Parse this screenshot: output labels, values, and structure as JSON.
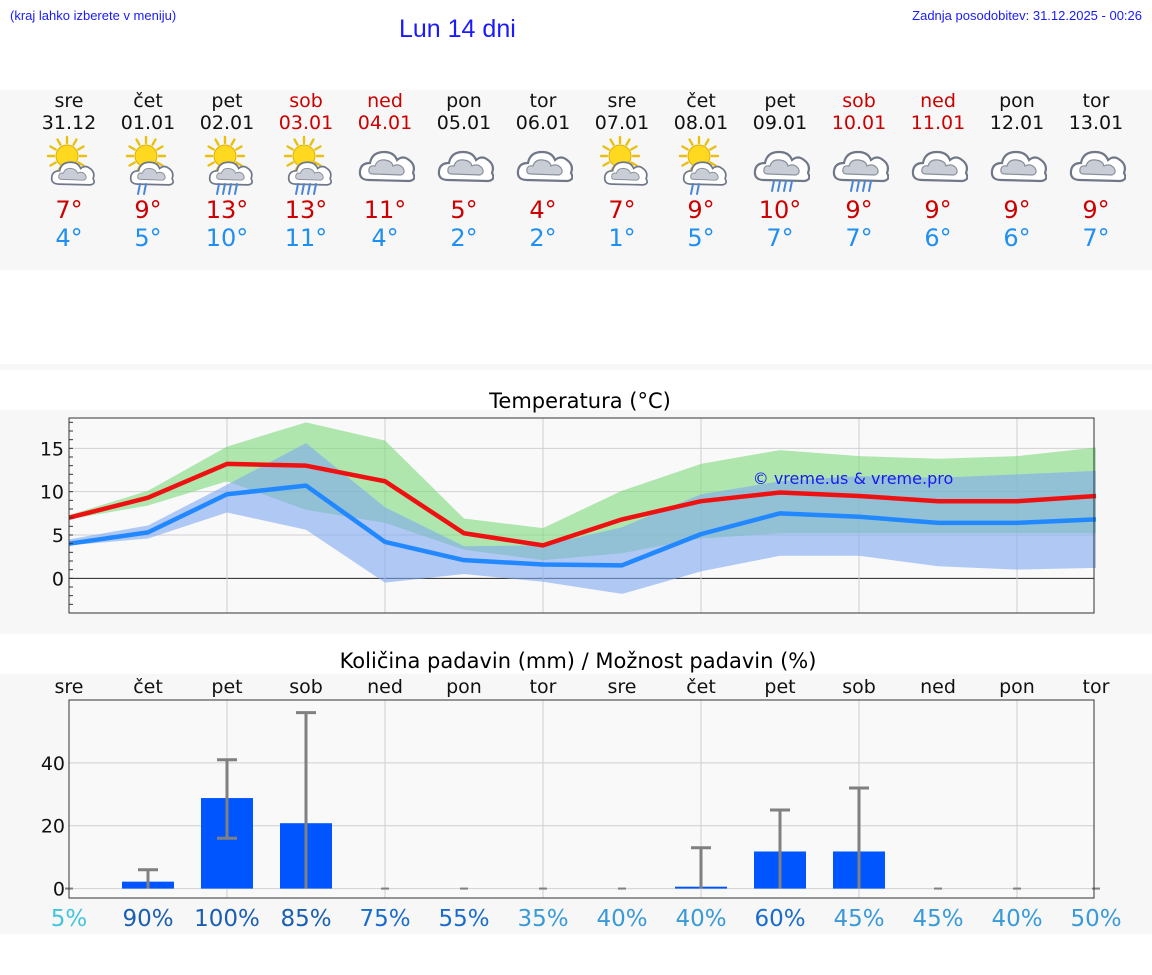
{
  "header": {
    "hint": "(kraj lahko izberete v meniju)",
    "title": "Lun 14 dni",
    "updated": "Zadnja posodobitev: 31.12.2025 - 00:26"
  },
  "days": [
    {
      "name": "sre",
      "date": "31.12",
      "weekend": false,
      "icon": "sun-cloud",
      "tmax": "7°",
      "tmin": "4°"
    },
    {
      "name": "čet",
      "date": "01.01",
      "weekend": false,
      "icon": "sun-cloud-rain",
      "tmax": "9°",
      "tmin": "5°"
    },
    {
      "name": "pet",
      "date": "02.01",
      "weekend": false,
      "icon": "sun-cloud-heavy-rain",
      "tmax": "13°",
      "tmin": "10°"
    },
    {
      "name": "sob",
      "date": "03.01",
      "weekend": true,
      "icon": "sun-cloud-heavy-rain",
      "tmax": "13°",
      "tmin": "11°"
    },
    {
      "name": "ned",
      "date": "04.01",
      "weekend": true,
      "icon": "cloud",
      "tmax": "11°",
      "tmin": "4°"
    },
    {
      "name": "pon",
      "date": "05.01",
      "weekend": false,
      "icon": "cloud",
      "tmax": "5°",
      "tmin": "2°"
    },
    {
      "name": "tor",
      "date": "06.01",
      "weekend": false,
      "icon": "cloud",
      "tmax": "4°",
      "tmin": "2°"
    },
    {
      "name": "sre",
      "date": "07.01",
      "weekend": false,
      "icon": "sun-cloud",
      "tmax": "7°",
      "tmin": "1°"
    },
    {
      "name": "čet",
      "date": "08.01",
      "weekend": false,
      "icon": "sun-cloud-rain",
      "tmax": "9°",
      "tmin": "5°"
    },
    {
      "name": "pet",
      "date": "09.01",
      "weekend": false,
      "icon": "cloud-heavy-rain",
      "tmax": "10°",
      "tmin": "7°"
    },
    {
      "name": "sob",
      "date": "10.01",
      "weekend": true,
      "icon": "cloud-heavy-rain",
      "tmax": "9°",
      "tmin": "7°"
    },
    {
      "name": "ned",
      "date": "11.01",
      "weekend": true,
      "icon": "cloud",
      "tmax": "9°",
      "tmin": "6°"
    },
    {
      "name": "pon",
      "date": "12.01",
      "weekend": false,
      "icon": "cloud",
      "tmax": "9°",
      "tmin": "6°"
    },
    {
      "name": "tor",
      "date": "13.01",
      "weekend": false,
      "icon": "cloud",
      "tmax": "9°",
      "tmin": "7°"
    }
  ],
  "chart_data": [
    {
      "type": "line",
      "title": "Temperatura (°C)",
      "watermark": "© vreme.us & vreme.pro",
      "x": [
        "31.12",
        "01.01",
        "02.01",
        "03.01",
        "04.01",
        "05.01",
        "06.01",
        "07.01",
        "08.01",
        "09.01",
        "10.01",
        "11.01",
        "12.01",
        "13.01"
      ],
      "ylim": [
        -4,
        18.5
      ],
      "yticks": [
        0,
        5,
        10,
        15
      ],
      "series": [
        {
          "name": "max",
          "color": "#ee1111",
          "values": [
            7,
            9.3,
            13.2,
            13,
            11.2,
            5.2,
            3.8,
            6.8,
            8.9,
            9.9,
            9.5,
            8.9,
            8.9,
            9.5
          ]
        },
        {
          "name": "min",
          "color": "#2288ff",
          "values": [
            4,
            5.3,
            9.7,
            10.7,
            4.2,
            2.1,
            1.6,
            1.5,
            5.1,
            7.5,
            7.1,
            6.4,
            6.4,
            6.8
          ]
        }
      ],
      "bands": [
        {
          "name": "max-range",
          "color": "#7cd87c",
          "lower": [
            6.8,
            8.4,
            11.2,
            7.9,
            6.4,
            3.3,
            2.1,
            2.9,
            4.6,
            5.2,
            5.2,
            5.2,
            5.2,
            5.2
          ],
          "upper": [
            7.3,
            10.1,
            15.2,
            18,
            15.9,
            6.9,
            5.8,
            10.1,
            13.2,
            14.8,
            14.1,
            13.8,
            14.1,
            15.1
          ]
        },
        {
          "name": "min-range",
          "color": "#7fa8f0",
          "lower": [
            3.8,
            4.6,
            7.6,
            5.6,
            -0.5,
            0.5,
            -0.4,
            -1.8,
            0.8,
            2.6,
            2.6,
            1.4,
            1,
            1.2
          ],
          "upper": [
            4.5,
            6.1,
            10.8,
            15.6,
            8.2,
            3.7,
            3.8,
            5.9,
            9.7,
            11.2,
            11.8,
            11.6,
            12,
            12.4
          ]
        }
      ]
    },
    {
      "type": "bar",
      "title": "Količina padavin (mm) / Možnost padavin (%)",
      "categories": [
        "sre",
        "čet",
        "pet",
        "sob",
        "ned",
        "pon",
        "tor",
        "sre",
        "čet",
        "pet",
        "sob",
        "ned",
        "pon",
        "tor"
      ],
      "values": [
        0,
        2.2,
        28.8,
        20.8,
        0,
        0,
        0,
        0,
        0.6,
        11.8,
        11.8,
        0,
        0,
        0
      ],
      "error_high": [
        0,
        6,
        41,
        56,
        0,
        0,
        0,
        0,
        13,
        25,
        32,
        0,
        0,
        0
      ],
      "error_low": [
        0,
        0,
        16,
        0,
        0,
        0,
        0,
        0,
        0,
        0,
        0,
        0,
        0,
        0
      ],
      "ylim": [
        -3,
        60
      ],
      "yticks": [
        0,
        20,
        40
      ],
      "probability": [
        "5%",
        "90%",
        "100%",
        "85%",
        "75%",
        "55%",
        "35%",
        "40%",
        "40%",
        "60%",
        "45%",
        "45%",
        "40%",
        "50%"
      ],
      "colors": {
        "bar": "#0055ff",
        "error": "#808080"
      }
    }
  ]
}
